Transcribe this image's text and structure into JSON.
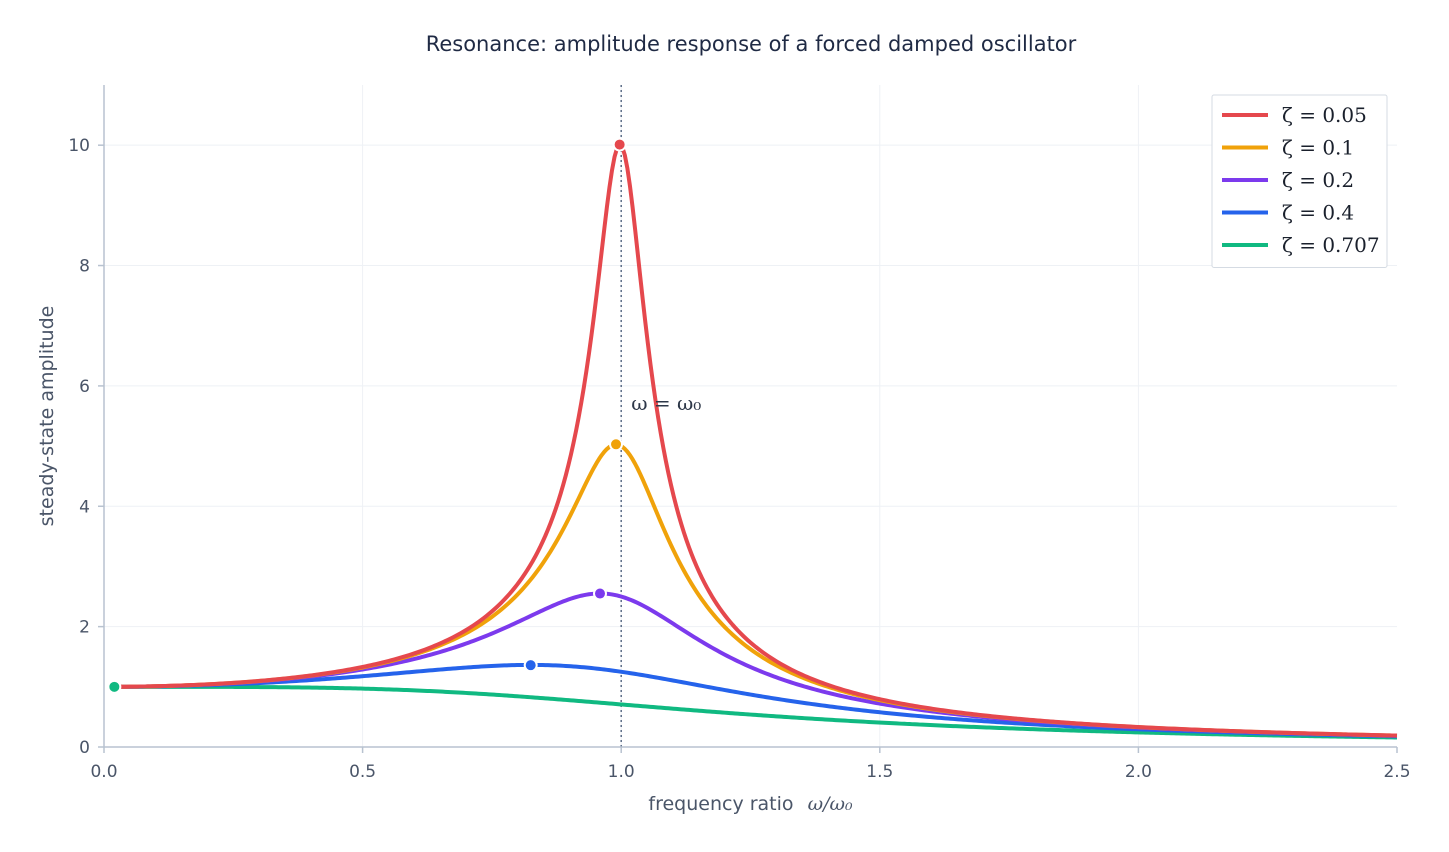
{
  "chart_data": {
    "type": "line",
    "title": "Resonance: amplitude response of a forced damped oscillator",
    "xlabel_text": "frequency ratio",
    "xlabel_math": "ω/ω₀",
    "ylabel": "steady-state amplitude",
    "xlim": [
      0,
      2.5
    ],
    "ylim": [
      0,
      11
    ],
    "x_ticks": [
      "0.0",
      "0.5",
      "1.0",
      "1.5",
      "2.0",
      "2.5"
    ],
    "y_ticks": [
      "0",
      "2",
      "4",
      "6",
      "8",
      "10"
    ],
    "grid": true,
    "legend_position": "top-right",
    "reference_line": {
      "x": 1.0,
      "style": "dotted",
      "label": "ω = ω₀"
    },
    "series": [
      {
        "name": "ζ = 0.05",
        "zeta": 0.05,
        "color": "#e5484d",
        "peak": {
          "x": 0.997,
          "y": 10.01
        }
      },
      {
        "name": "ζ = 0.1",
        "zeta": 0.1,
        "color": "#f0a20a",
        "peak": {
          "x": 0.99,
          "y": 5.03
        }
      },
      {
        "name": "ζ = 0.2",
        "zeta": 0.2,
        "color": "#7c3aed",
        "peak": {
          "x": 0.959,
          "y": 2.55
        }
      },
      {
        "name": "ζ = 0.4",
        "zeta": 0.4,
        "color": "#2563eb",
        "peak": {
          "x": 0.825,
          "y": 1.36
        }
      },
      {
        "name": "ζ = 0.707",
        "zeta": 0.707,
        "color": "#10b981",
        "peak": {
          "x": 0.02,
          "y": 1.0
        }
      }
    ]
  }
}
